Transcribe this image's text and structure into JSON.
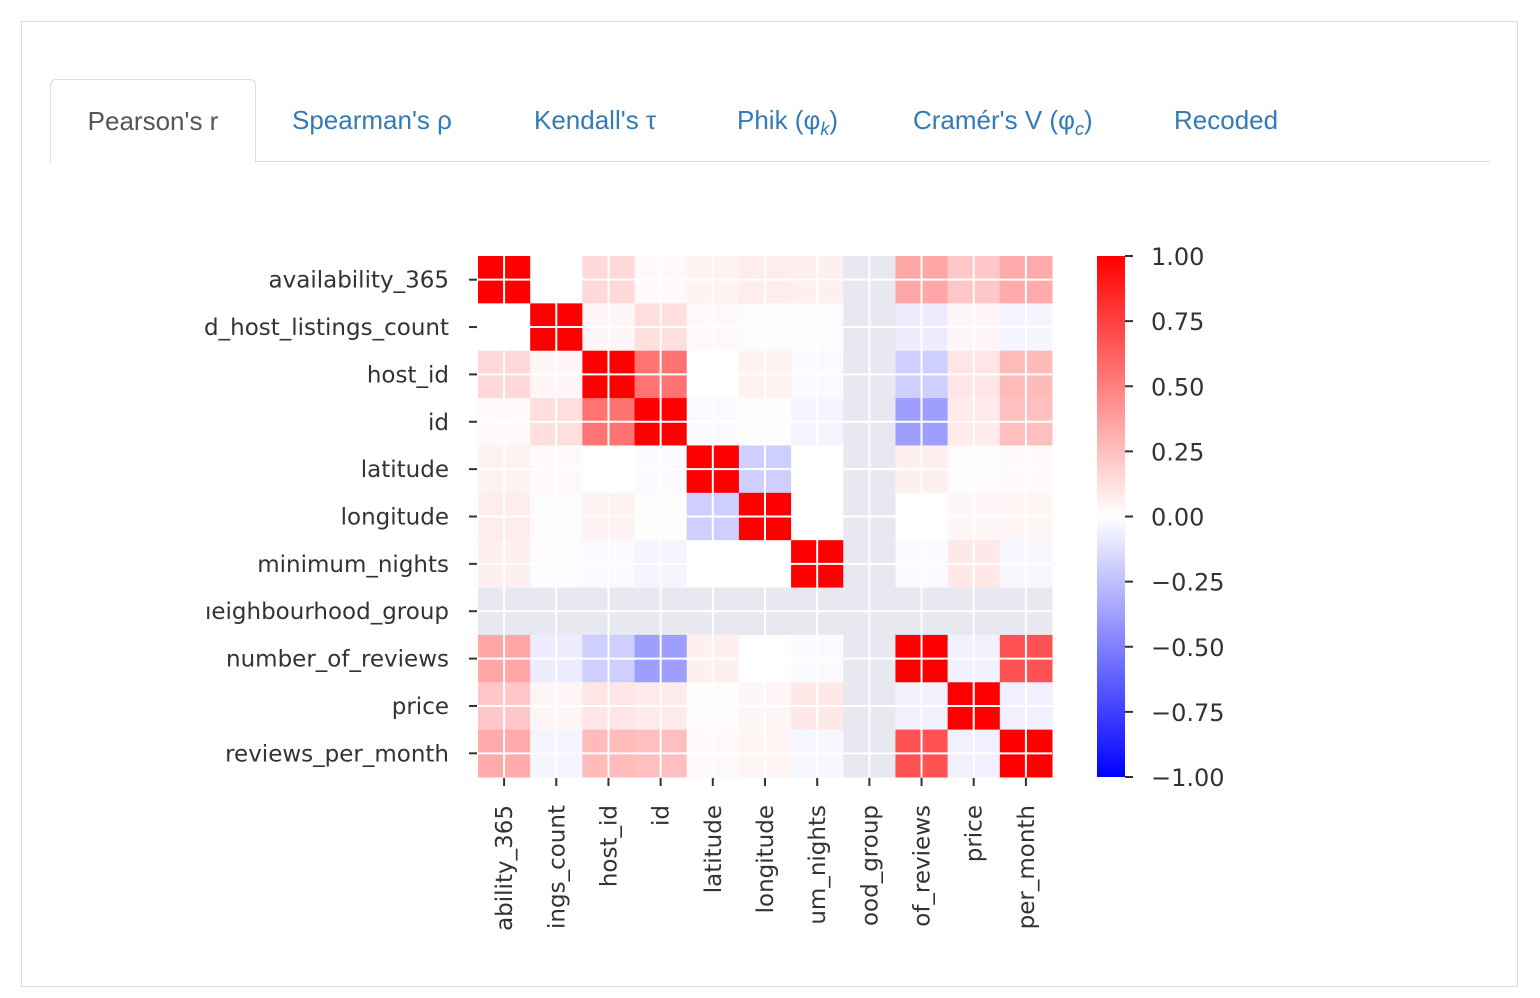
{
  "tabs": [
    {
      "label": "Pearson's r",
      "active": true
    },
    {
      "label": "Spearman's ρ",
      "active": false
    },
    {
      "label": "Kendall's τ",
      "active": false
    },
    {
      "label": "Phik (φ",
      "sub": "k",
      "close": ")",
      "active": false
    },
    {
      "label": "Cramér's V (φ",
      "sub": "c",
      "close": ")",
      "active": false
    },
    {
      "label": "Recoded",
      "active": false
    }
  ],
  "chart_data": {
    "type": "heatmap",
    "title": "",
    "row_labels": [
      "availability_365",
      "d_host_listings_count",
      "host_id",
      "id",
      "latitude",
      "longitude",
      "minimum_nights",
      "ıeighbourhood_group",
      "number_of_reviews",
      "price",
      "reviews_per_month"
    ],
    "col_labels": [
      "ability_365",
      "ings_count",
      "host_id",
      "id",
      "latitude",
      "longitude",
      "um_nights",
      "ood_group",
      "of_reviews",
      "price",
      "per_month"
    ],
    "missing_color": "#e8e8f0",
    "values": [
      [
        1.0,
        0.0,
        0.15,
        0.02,
        0.05,
        0.07,
        0.06,
        null,
        0.35,
        0.22,
        0.33
      ],
      [
        0.0,
        1.0,
        0.03,
        0.13,
        0.02,
        -0.01,
        -0.01,
        null,
        -0.07,
        0.03,
        -0.04
      ],
      [
        0.15,
        0.03,
        1.0,
        0.55,
        0.0,
        0.05,
        -0.02,
        null,
        -0.19,
        0.1,
        0.27
      ],
      [
        0.02,
        0.13,
        0.55,
        1.0,
        -0.02,
        0.01,
        -0.04,
        null,
        -0.38,
        0.08,
        0.25
      ],
      [
        0.05,
        0.02,
        0.0,
        -0.02,
        1.0,
        -0.19,
        0.0,
        null,
        0.06,
        0.01,
        0.02
      ],
      [
        0.07,
        -0.01,
        0.05,
        0.01,
        -0.19,
        1.0,
        0.0,
        null,
        0.0,
        0.03,
        0.04
      ],
      [
        0.06,
        -0.01,
        -0.02,
        -0.04,
        0.0,
        0.0,
        1.0,
        null,
        -0.02,
        0.09,
        -0.03
      ],
      [
        null,
        null,
        null,
        null,
        null,
        null,
        null,
        null,
        null,
        null,
        null
      ],
      [
        0.35,
        -0.07,
        -0.19,
        -0.38,
        0.06,
        0.0,
        -0.02,
        null,
        1.0,
        -0.05,
        0.68
      ],
      [
        0.22,
        0.03,
        0.1,
        0.08,
        0.01,
        0.03,
        0.09,
        null,
        -0.05,
        1.0,
        -0.06
      ],
      [
        0.33,
        -0.04,
        0.27,
        0.25,
        0.02,
        0.04,
        -0.03,
        null,
        0.68,
        -0.06,
        1.0
      ]
    ],
    "colorbar": {
      "min": -1.0,
      "max": 1.0,
      "colormap": "bwr",
      "ticks": [
        1.0,
        0.75,
        0.5,
        0.25,
        0.0,
        -0.25,
        -0.5,
        -0.75,
        -1.0
      ],
      "tick_labels": [
        "1.00",
        "0.75",
        "0.50",
        "0.25",
        "0.00",
        "−0.25",
        "−0.50",
        "−0.75",
        "−1.00"
      ]
    }
  }
}
